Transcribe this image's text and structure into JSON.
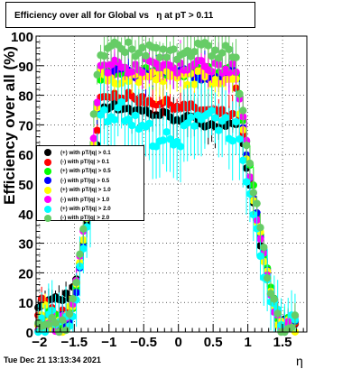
{
  "chart_data": {
    "type": "scatter",
    "title": "Efficiency over all for Global vs   η at pT > 0.11",
    "xlabel": "η",
    "ylabel": "Efficiency over all (%)",
    "xlim": [
      -2.05,
      1.85
    ],
    "ylim": [
      0,
      100
    ],
    "x_ticks": [
      "−2",
      "−1.5",
      "−1",
      "−0.5",
      "0",
      "0.5",
      "1",
      "1.5"
    ],
    "y_ticks": [
      "0",
      "10",
      "20",
      "30",
      "40",
      "50",
      "60",
      "70",
      "80",
      "90",
      "100"
    ],
    "grid": true,
    "legend_position": "middle-left",
    "series": [
      {
        "name": "(+) with pT/|q| > 0.1",
        "color": "#000000"
      },
      {
        "name": "(-) with pT/|q| > 0.1",
        "color": "#ff0000"
      },
      {
        "name": "(+) with pT/|q| > 0.5",
        "color": "#00ff00"
      },
      {
        "name": "(-) with pT/|q| > 0.5",
        "color": "#0000ff"
      },
      {
        "name": "(+) with pT/|q| > 1.0",
        "color": "#ffff00"
      },
      {
        "name": "(-) with pT/|q| > 1.0",
        "color": "#ff00ff"
      },
      {
        "name": "(+) with pT/|q| > 2.0",
        "color": "#00ffff"
      },
      {
        "name": "(-) with pT/|q| > 2.0",
        "color": "#66cc66"
      }
    ]
  },
  "footer": {
    "datestamp": "Tue Dec 21 13:13:34 2021"
  }
}
